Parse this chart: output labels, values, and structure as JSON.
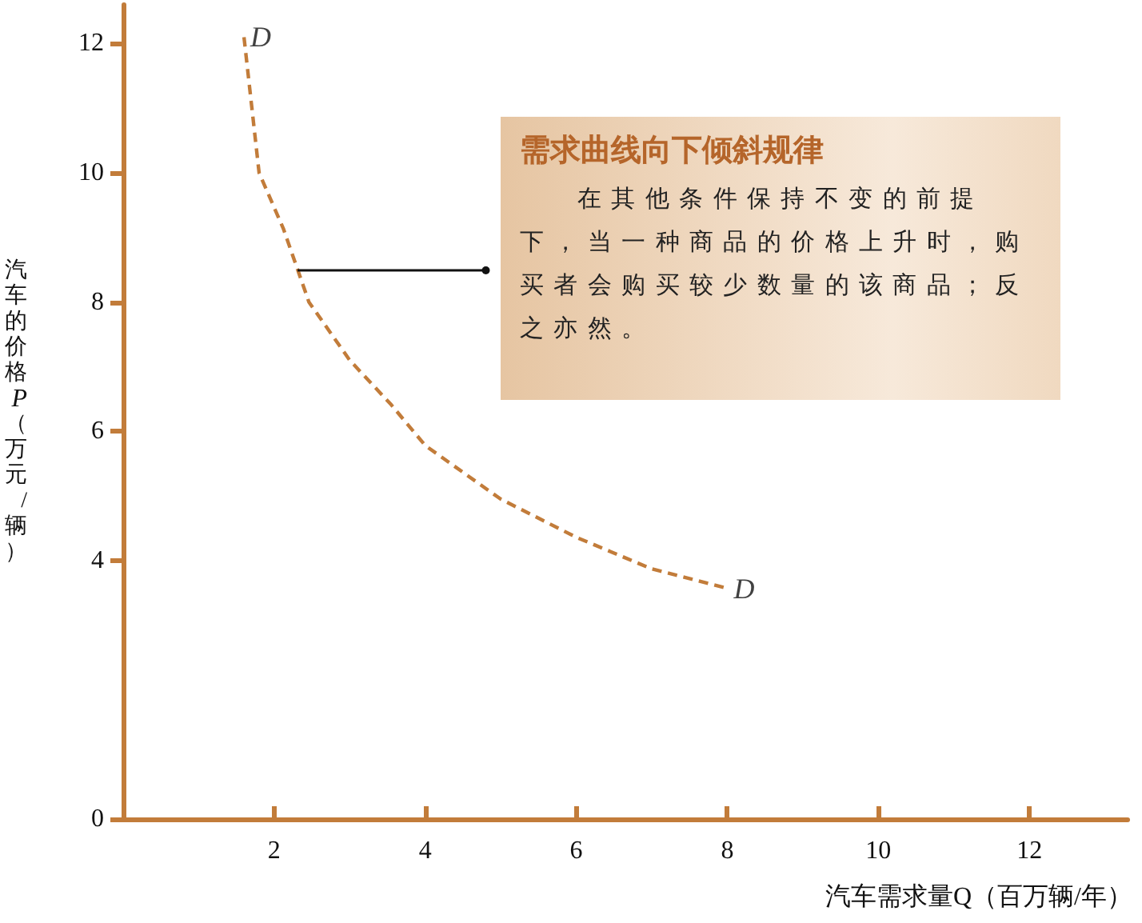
{
  "chart_data": {
    "type": "line",
    "xlabel": "汽车需求量Q（百万辆/年）",
    "ylabel": "汽车的价格P（万元/辆）",
    "x": [
      1.6,
      1.8,
      2.12,
      2.46,
      3.0,
      3.55,
      4,
      5,
      6,
      7,
      8
    ],
    "series": [
      {
        "color": "#c27c3a",
        "values": [
          12.1,
          10,
          9.14,
          8,
          7.1,
          6.41,
          5.78,
          4.95,
          4.36,
          3.87,
          3.57
        ]
      }
    ],
    "xlim": [
      0,
      13.3
    ],
    "xticks": [
      2,
      4,
      6,
      8,
      10,
      12
    ],
    "ylim": [
      0,
      12.6
    ],
    "yticks": [
      0,
      4,
      6,
      8,
      10,
      12
    ],
    "line_style": "dashed",
    "marker": "none",
    "grid": false,
    "annotations": [
      "需求曲线向下倾斜规律",
      "在其他条件保持不变的前提下，当一种商品的价格上升时，购买者会购买较少数量的该商品；反之亦然。",
      {
        "text": "D",
        "x": 1.6,
        "y": 12.1
      },
      {
        "text": "D",
        "x": 8,
        "y": 3.57
      }
    ]
  }
}
